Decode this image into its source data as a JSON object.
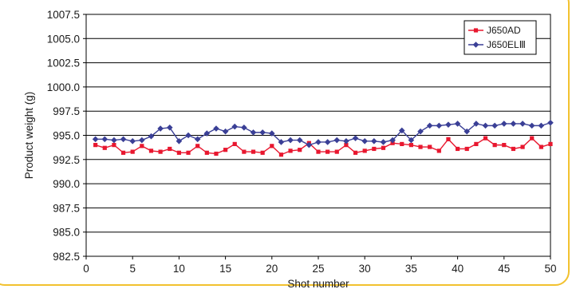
{
  "chart_data": {
    "type": "line",
    "title": "",
    "xlabel": "Shot number",
    "ylabel": "Product weight (g)",
    "xlim": [
      0,
      50
    ],
    "ylim": [
      982.5,
      1007.5
    ],
    "xticks": [
      0,
      5,
      10,
      15,
      20,
      25,
      30,
      35,
      40,
      45,
      50
    ],
    "x_tick_labels": [
      "0",
      "5",
      "10",
      "15",
      "20",
      "25",
      "30",
      "35",
      "40",
      "45",
      "50"
    ],
    "yticks": [
      982.5,
      985.0,
      987.5,
      990.0,
      992.5,
      995.0,
      997.5,
      1000.0,
      1002.5,
      1005.0,
      1007.5
    ],
    "y_tick_labels": [
      "982.5",
      "985.0",
      "987.5",
      "990.0",
      "992.5",
      "995.0",
      "997.5",
      "1000.0",
      "1002.5",
      "1005.0",
      "1007.5"
    ],
    "grid": "horizontal",
    "legend_position": "top-right",
    "x": [
      1,
      2,
      3,
      4,
      5,
      6,
      7,
      8,
      9,
      10,
      11,
      12,
      13,
      14,
      15,
      16,
      17,
      18,
      19,
      20,
      21,
      22,
      23,
      24,
      25,
      26,
      27,
      28,
      29,
      30,
      31,
      32,
      33,
      34,
      35,
      36,
      37,
      38,
      39,
      40,
      41,
      42,
      43,
      44,
      45,
      46,
      47,
      48,
      49,
      50
    ],
    "series": [
      {
        "name": "J650AD",
        "color": "#e8172f",
        "marker": "square",
        "values": [
          994.0,
          993.7,
          994.0,
          993.2,
          993.3,
          993.9,
          993.4,
          993.3,
          993.6,
          993.2,
          993.2,
          993.9,
          993.2,
          993.1,
          993.5,
          994.1,
          993.3,
          993.3,
          993.2,
          993.9,
          993.0,
          993.4,
          993.5,
          994.2,
          993.3,
          993.3,
          993.3,
          994.0,
          993.2,
          993.4,
          993.6,
          993.7,
          994.2,
          994.1,
          994.0,
          993.8,
          993.8,
          993.4,
          994.6,
          993.6,
          993.6,
          994.1,
          994.7,
          994.0,
          994.0,
          993.6,
          993.8,
          994.7,
          993.8,
          994.1
        ]
      },
      {
        "name": "J650ELⅢ",
        "color": "#3a3f96",
        "marker": "diamond",
        "values": [
          994.6,
          994.6,
          994.5,
          994.6,
          994.4,
          994.5,
          994.9,
          995.7,
          995.8,
          994.4,
          995.0,
          994.6,
          995.2,
          995.7,
          995.4,
          995.9,
          995.8,
          995.3,
          995.3,
          995.2,
          994.3,
          994.5,
          994.5,
          994.0,
          994.3,
          994.3,
          994.5,
          994.4,
          994.7,
          994.4,
          994.4,
          994.3,
          994.5,
          995.5,
          994.5,
          995.4,
          996.0,
          996.0,
          996.1,
          996.2,
          995.4,
          996.2,
          996.0,
          996.0,
          996.2,
          996.2,
          996.2,
          996.0,
          996.0,
          996.3
        ]
      }
    ]
  }
}
